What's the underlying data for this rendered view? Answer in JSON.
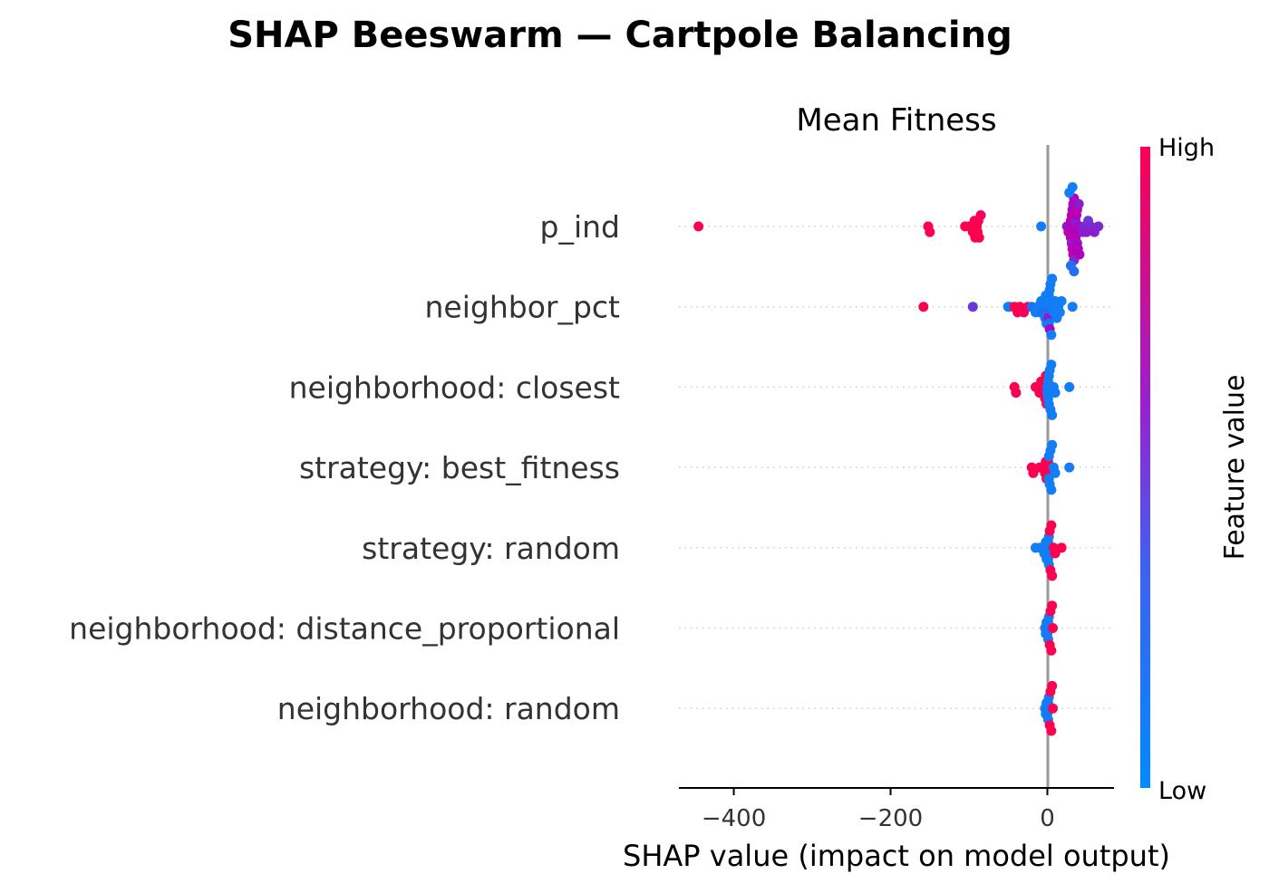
{
  "chart_data": {
    "type": "scatter",
    "subtype": "shap-beeswarm",
    "suptitle": "SHAP Beeswarm — Cartpole Balancing",
    "title": "Mean Fitness",
    "xlabel": "SHAP value (impact on model output)",
    "xlim": [
      -470,
      85
    ],
    "xticks": [
      -400,
      -200,
      0
    ],
    "xtick_labels": [
      "−400",
      "−200",
      "0"
    ],
    "colorbar": {
      "label": "Feature value",
      "high": "High",
      "low": "Low",
      "high_color": "#ff0051",
      "mid_color": "#b000c0",
      "low_color": "#008bfb"
    },
    "zero_line_color": "#999999",
    "features": [
      {
        "name": "p_ind",
        "points": [
          {
            "x": -445,
            "f": 1
          },
          {
            "x": -152,
            "f": 1
          },
          {
            "x": -150,
            "f": 1
          },
          {
            "x": -105,
            "f": 1
          },
          {
            "x": -100,
            "f": 1
          },
          {
            "x": -97,
            "f": 1
          },
          {
            "x": -95,
            "f": 1
          },
          {
            "x": -93,
            "f": 1
          },
          {
            "x": -92,
            "f": 1
          },
          {
            "x": -90,
            "f": 1
          },
          {
            "x": -89,
            "f": 1
          },
          {
            "x": -88,
            "f": 1
          },
          {
            "x": -87,
            "f": 1
          },
          {
            "x": -85,
            "f": 0.95
          },
          {
            "x": -8,
            "f": 0.05
          },
          {
            "x": 25,
            "f": 0.4
          },
          {
            "x": 27,
            "f": 0.5
          },
          {
            "x": 28,
            "f": 0.45
          },
          {
            "x": 29,
            "f": 0.6
          },
          {
            "x": 30,
            "f": 0.5
          },
          {
            "x": 30,
            "f": 0.55
          },
          {
            "x": 31,
            "f": 0.65
          },
          {
            "x": 31,
            "f": 0.4
          },
          {
            "x": 32,
            "f": 0.5
          },
          {
            "x": 32,
            "f": 0.6
          },
          {
            "x": 33,
            "f": 0.45
          },
          {
            "x": 33,
            "f": 0.55
          },
          {
            "x": 34,
            "f": 0.5
          },
          {
            "x": 34,
            "f": 0.35
          },
          {
            "x": 35,
            "f": 0.6
          },
          {
            "x": 35,
            "f": 0.5
          },
          {
            "x": 36,
            "f": 0.4
          },
          {
            "x": 36,
            "f": 0.55
          },
          {
            "x": 37,
            "f": 0.5
          },
          {
            "x": 38,
            "f": 0.45
          },
          {
            "x": 38,
            "f": 0.6
          },
          {
            "x": 39,
            "f": 0.5
          },
          {
            "x": 40,
            "f": 0.4
          },
          {
            "x": 41,
            "f": 0.5
          },
          {
            "x": 42,
            "f": 0.45
          },
          {
            "x": 45,
            "f": 0.4
          },
          {
            "x": 48,
            "f": 0.35
          },
          {
            "x": 50,
            "f": 0.4
          },
          {
            "x": 52,
            "f": 0.3
          },
          {
            "x": 55,
            "f": 0.35
          },
          {
            "x": 60,
            "f": 0.4
          },
          {
            "x": 65,
            "f": 0.35
          },
          {
            "x": 28,
            "f": 0.05
          },
          {
            "x": 30,
            "f": 0.1
          },
          {
            "x": 32,
            "f": 0.05
          },
          {
            "x": 34,
            "f": 0.1
          }
        ]
      },
      {
        "name": "neighbor_pct",
        "points": [
          {
            "x": -158,
            "f": 1
          },
          {
            "x": -95,
            "f": 0.3
          },
          {
            "x": -50,
            "f": 0.05
          },
          {
            "x": -48,
            "f": 0.05
          },
          {
            "x": -42,
            "f": 1
          },
          {
            "x": -38,
            "f": 1
          },
          {
            "x": -35,
            "f": 1
          },
          {
            "x": -30,
            "f": 0.95
          },
          {
            "x": -25,
            "f": 1
          },
          {
            "x": -20,
            "f": 0.1
          },
          {
            "x": -15,
            "f": 0.05
          },
          {
            "x": -12,
            "f": 0.05
          },
          {
            "x": -10,
            "f": 0.05
          },
          {
            "x": -8,
            "f": 0.05
          },
          {
            "x": -6,
            "f": 0.05
          },
          {
            "x": -5,
            "f": 0.1
          },
          {
            "x": -4,
            "f": 0.05
          },
          {
            "x": -3,
            "f": 0.05
          },
          {
            "x": -2,
            "f": 0.05
          },
          {
            "x": -1,
            "f": 0.05
          },
          {
            "x": 0,
            "f": 0.05
          },
          {
            "x": 0,
            "f": 0.1
          },
          {
            "x": 1,
            "f": 0.05
          },
          {
            "x": 1,
            "f": 0.4
          },
          {
            "x": 2,
            "f": 0.05
          },
          {
            "x": 2,
            "f": 0.05
          },
          {
            "x": 3,
            "f": 0.05
          },
          {
            "x": 3,
            "f": 0.5
          },
          {
            "x": 4,
            "f": 0.05
          },
          {
            "x": 5,
            "f": 0.05
          },
          {
            "x": 6,
            "f": 0.05
          },
          {
            "x": 7,
            "f": 0.05
          },
          {
            "x": 8,
            "f": 0.05
          },
          {
            "x": 10,
            "f": 0.05
          },
          {
            "x": 12,
            "f": 0.05
          },
          {
            "x": 14,
            "f": 0.05
          },
          {
            "x": 16,
            "f": 0.05
          },
          {
            "x": 18,
            "f": 0.05
          },
          {
            "x": 32,
            "f": 0.05
          }
        ]
      },
      {
        "name": "neighborhood: closest",
        "points": [
          {
            "x": -42,
            "f": 1
          },
          {
            "x": -40,
            "f": 1
          },
          {
            "x": -15,
            "f": 1
          },
          {
            "x": -12,
            "f": 1
          },
          {
            "x": -10,
            "f": 1
          },
          {
            "x": -8,
            "f": 1
          },
          {
            "x": -6,
            "f": 1
          },
          {
            "x": -5,
            "f": 0.9
          },
          {
            "x": -4,
            "f": 1
          },
          {
            "x": -3,
            "f": 1
          },
          {
            "x": -2,
            "f": 1
          },
          {
            "x": -1,
            "f": 1
          },
          {
            "x": 0,
            "f": 0.05
          },
          {
            "x": 0,
            "f": 0.05
          },
          {
            "x": 1,
            "f": 0.05
          },
          {
            "x": 1,
            "f": 0.05
          },
          {
            "x": 2,
            "f": 0.05
          },
          {
            "x": 2,
            "f": 0.05
          },
          {
            "x": 3,
            "f": 0.05
          },
          {
            "x": 4,
            "f": 0.05
          },
          {
            "x": 5,
            "f": 0.05
          },
          {
            "x": 6,
            "f": 0.05
          },
          {
            "x": 8,
            "f": 0.05
          },
          {
            "x": 10,
            "f": 0.05
          },
          {
            "x": 28,
            "f": 0.05
          }
        ]
      },
      {
        "name": "strategy: best_fitness",
        "points": [
          {
            "x": -20,
            "f": 1
          },
          {
            "x": -18,
            "f": 1
          },
          {
            "x": -10,
            "f": 1
          },
          {
            "x": -5,
            "f": 1
          },
          {
            "x": -3,
            "f": 1
          },
          {
            "x": -2,
            "f": 1
          },
          {
            "x": -1,
            "f": 1
          },
          {
            "x": 0,
            "f": 1
          },
          {
            "x": 1,
            "f": 1
          },
          {
            "x": 1,
            "f": 1
          },
          {
            "x": 2,
            "f": 0.05
          },
          {
            "x": 2,
            "f": 0.05
          },
          {
            "x": 3,
            "f": 0.05
          },
          {
            "x": 4,
            "f": 0.05
          },
          {
            "x": 5,
            "f": 0.05
          },
          {
            "x": 6,
            "f": 0.05
          },
          {
            "x": 8,
            "f": 0.05
          },
          {
            "x": 10,
            "f": 0.05
          },
          {
            "x": 28,
            "f": 0.05
          }
        ]
      },
      {
        "name": "strategy: random",
        "points": [
          {
            "x": -15,
            "f": 0.05
          },
          {
            "x": -10,
            "f": 0.05
          },
          {
            "x": -6,
            "f": 0.05
          },
          {
            "x": -4,
            "f": 0.05
          },
          {
            "x": -2,
            "f": 0.05
          },
          {
            "x": -1,
            "f": 0.05
          },
          {
            "x": 0,
            "f": 0.05
          },
          {
            "x": 0,
            "f": 0.05
          },
          {
            "x": 1,
            "f": 0.05
          },
          {
            "x": 1,
            "f": 0.05
          },
          {
            "x": 2,
            "f": 0.05
          },
          {
            "x": 2,
            "f": 0.05
          },
          {
            "x": 3,
            "f": 1
          },
          {
            "x": 4,
            "f": 1
          },
          {
            "x": 5,
            "f": 1
          },
          {
            "x": 6,
            "f": 1
          },
          {
            "x": 8,
            "f": 1
          },
          {
            "x": 10,
            "f": 1
          },
          {
            "x": 18,
            "f": 1
          }
        ]
      },
      {
        "name": "neighborhood: distance_proportional",
        "points": [
          {
            "x": -3,
            "f": 0.05
          },
          {
            "x": -2,
            "f": 0.05
          },
          {
            "x": -1,
            "f": 0.05
          },
          {
            "x": 0,
            "f": 0.05
          },
          {
            "x": 0,
            "f": 0.05
          },
          {
            "x": 1,
            "f": 0.05
          },
          {
            "x": 1,
            "f": 0.05
          },
          {
            "x": 2,
            "f": 0.05
          },
          {
            "x": 3,
            "f": 1
          },
          {
            "x": 4,
            "f": 1
          },
          {
            "x": 5,
            "f": 1
          },
          {
            "x": 6,
            "f": 1
          },
          {
            "x": 7,
            "f": 1
          }
        ]
      },
      {
        "name": "neighborhood: random",
        "points": [
          {
            "x": -3,
            "f": 0.05
          },
          {
            "x": -2,
            "f": 0.05
          },
          {
            "x": -1,
            "f": 0.05
          },
          {
            "x": 0,
            "f": 0.05
          },
          {
            "x": 0,
            "f": 0.05
          },
          {
            "x": 1,
            "f": 0.05
          },
          {
            "x": 1,
            "f": 0.05
          },
          {
            "x": 2,
            "f": 0.05
          },
          {
            "x": 3,
            "f": 1
          },
          {
            "x": 4,
            "f": 1
          },
          {
            "x": 5,
            "f": 1
          },
          {
            "x": 6,
            "f": 1
          },
          {
            "x": 7,
            "f": 1
          }
        ]
      }
    ]
  }
}
